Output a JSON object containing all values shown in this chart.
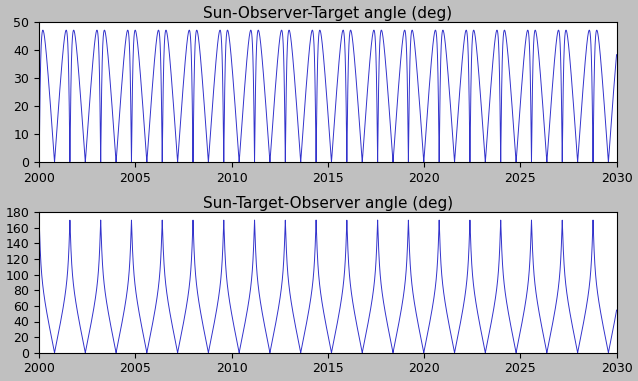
{
  "title1": "Sun-Observer-Target angle (deg)",
  "title2": "Sun-Target-Observer angle (deg)",
  "xmin": 2000,
  "xmax": 2030,
  "ylim1": [
    0,
    50
  ],
  "ylim2": [
    0,
    180
  ],
  "yticks1": [
    0,
    10,
    20,
    30,
    40,
    50
  ],
  "yticks2": [
    0,
    20,
    40,
    60,
    80,
    100,
    120,
    140,
    160,
    180
  ],
  "xticks": [
    2000,
    2005,
    2010,
    2015,
    2020,
    2025,
    2030
  ],
  "line_color": "#3333cc",
  "bg_color": "#c0c0c0",
  "axes_bg": "#ffffff",
  "synodic_period": 1.5987,
  "max_elongation": 47.0,
  "max_phase": 170.0,
  "title_fontsize": 11,
  "tick_fontsize": 9,
  "linewidth": 0.7
}
